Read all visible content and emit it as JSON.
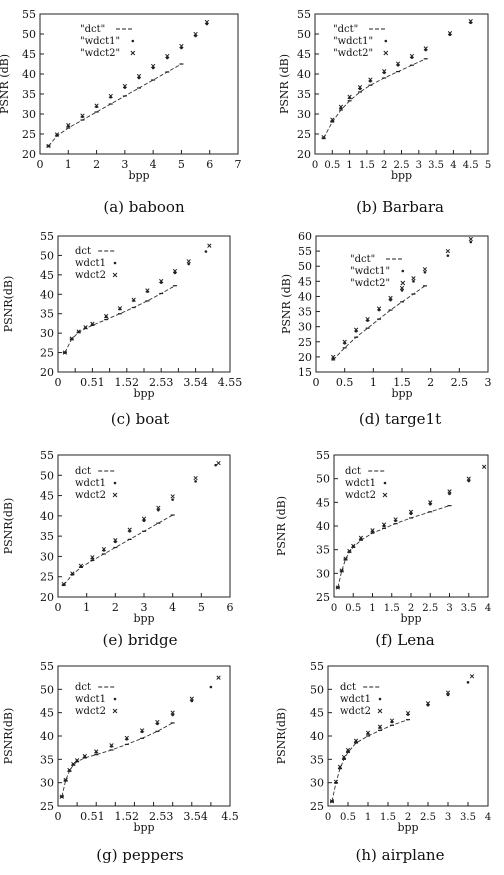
{
  "chart_data": [
    {
      "type": "scatter",
      "caption": "(a)  baboon",
      "xlabel": "bpp",
      "ylabel": "PSNR (dB)",
      "xlim": [
        0,
        7
      ],
      "ylim": [
        20,
        55
      ],
      "xticks": [
        "0",
        "1",
        "2",
        "3",
        "4",
        "5",
        "6",
        "7"
      ],
      "yticks": [
        "20",
        "25",
        "30",
        "35",
        "40",
        "45",
        "50",
        "55"
      ],
      "legend": [
        "\"dct\"",
        "\"wdct1\"",
        "\"wdct2\""
      ],
      "series": [
        {
          "name": "\"dct\"",
          "x": [
            0.3,
            0.6,
            1.0,
            1.5,
            2.0,
            2.5,
            3.0,
            3.5,
            4.0,
            4.5,
            5.0
          ],
          "y": [
            22,
            24.5,
            26.5,
            28.5,
            30.5,
            32.5,
            34.5,
            36.5,
            38.5,
            40.5,
            42.5
          ]
        },
        {
          "name": "\"wdct1\"",
          "x": [
            0.3,
            0.6,
            1.0,
            1.5,
            2.0,
            2.5,
            3.0,
            3.5,
            4.0,
            4.5,
            5.0,
            5.5,
            5.9
          ],
          "y": [
            22,
            24.8,
            27,
            29.3,
            31.8,
            34.2,
            36.6,
            39,
            41.5,
            44,
            46.5,
            49.5,
            52.5
          ]
        },
        {
          "name": "\"wdct2\"",
          "x": [
            0.3,
            0.6,
            1.0,
            1.5,
            2.0,
            2.5,
            3.0,
            3.5,
            4.0,
            4.5,
            5.0,
            5.5,
            5.9
          ],
          "y": [
            22,
            24.9,
            27.2,
            29.6,
            32.1,
            34.5,
            37,
            39.5,
            42,
            44.5,
            47,
            50,
            53
          ]
        }
      ]
    },
    {
      "type": "scatter",
      "caption": "(b)  Barbara",
      "xlabel": "bpp",
      "ylabel": "PSNR (dB)",
      "xlim": [
        0,
        5
      ],
      "ylim": [
        20,
        55
      ],
      "xticks": [
        "0",
        "0.5",
        "1",
        "1.5",
        "2",
        "2.5",
        "3",
        "3.5",
        "4",
        "4.5",
        "5"
      ],
      "yticks": [
        "20",
        "25",
        "30",
        "35",
        "40",
        "45",
        "50",
        "55"
      ],
      "legend": [
        "\"dct\"",
        "\"wdct1\"",
        "\"wdct2\""
      ],
      "series": [
        {
          "name": "\"dct\"",
          "x": [
            0.25,
            0.5,
            0.75,
            1.0,
            1.3,
            1.6,
            2.0,
            2.4,
            2.8,
            3.2
          ],
          "y": [
            24,
            28,
            31,
            33.3,
            35.5,
            37.2,
            39,
            40.6,
            42.2,
            43.8
          ]
        },
        {
          "name": "\"wdct1\"",
          "x": [
            0.25,
            0.5,
            0.75,
            1.0,
            1.3,
            1.6,
            2.0,
            2.4,
            2.8,
            3.2,
            3.9,
            4.5
          ],
          "y": [
            24,
            28.3,
            31.5,
            34,
            36.3,
            38.2,
            40.3,
            42.2,
            44.1,
            46,
            49.8,
            52.8
          ]
        },
        {
          "name": "\"wdct2\"",
          "x": [
            0.25,
            0.5,
            0.75,
            1.0,
            1.3,
            1.6,
            2.0,
            2.4,
            2.8,
            3.2,
            3.9,
            4.5
          ],
          "y": [
            24.2,
            28.6,
            31.8,
            34.3,
            36.7,
            38.6,
            40.7,
            42.6,
            44.5,
            46.4,
            50.2,
            53.2
          ]
        }
      ]
    },
    {
      "type": "scatter",
      "caption": "(c)  boat",
      "xlabel": "bpp",
      "ylabel": "PSNR(dB)",
      "xlim": [
        0,
        5
      ],
      "ylim": [
        20,
        55
      ],
      "xticks": [
        "0",
        "0.5",
        "1",
        "1.5",
        "2",
        "2.5",
        "3",
        "3.5",
        "4",
        "4.5",
        "5"
      ],
      "xtick_labels": [
        "0",
        "0.51",
        "1.52",
        "2.53",
        "3.54",
        "4.55"
      ],
      "yticks": [
        "20",
        "25",
        "30",
        "35",
        "40",
        "45",
        "50",
        "55"
      ],
      "legend": [
        "dct",
        "wdct1",
        "wdct2"
      ],
      "series": [
        {
          "name": "dct",
          "x": [
            0.2,
            0.4,
            0.6,
            0.8,
            1.0,
            1.4,
            1.8,
            2.2,
            2.6,
            3.0,
            3.4
          ],
          "y": [
            25,
            28.5,
            30.2,
            31.2,
            32,
            33.5,
            35,
            36.6,
            38.3,
            40.2,
            42.2
          ]
        },
        {
          "name": "wdct1",
          "x": [
            0.2,
            0.4,
            0.6,
            0.8,
            1.0,
            1.4,
            1.8,
            2.2,
            2.6,
            3.0,
            3.4,
            3.8,
            4.3
          ],
          "y": [
            25,
            28.5,
            30.3,
            31.4,
            32.3,
            34.2,
            36.2,
            38.4,
            40.7,
            43,
            45.5,
            47.8,
            51
          ]
        },
        {
          "name": "wdct2",
          "x": [
            0.2,
            0.4,
            0.6,
            0.8,
            1.0,
            1.4,
            1.8,
            2.2,
            2.6,
            3.0,
            3.4,
            3.8,
            4.4
          ],
          "y": [
            25,
            28.6,
            30.4,
            31.5,
            32.4,
            34.4,
            36.4,
            38.6,
            41,
            43.4,
            46,
            48.5,
            52.5
          ]
        }
      ]
    },
    {
      "type": "scatter",
      "caption": "(d)  targe1t",
      "xlabel": "bpp",
      "ylabel": "PSNR (dB)",
      "xlim": [
        0,
        3
      ],
      "ylim": [
        15,
        60
      ],
      "xticks": [
        "0",
        "0.5",
        "1",
        "1.5",
        "2",
        "2.5",
        "3"
      ],
      "yticks": [
        "15",
        "20",
        "25",
        "30",
        "35",
        "40",
        "45",
        "50",
        "55",
        "60"
      ],
      "legend": [
        "\"dct\"",
        "\"wdct1\"",
        "\"wdct2\""
      ],
      "series": [
        {
          "name": "\"dct\"",
          "x": [
            0.3,
            0.5,
            0.7,
            0.9,
            1.1,
            1.3,
            1.5,
            1.7,
            1.9
          ],
          "y": [
            19,
            23,
            26.5,
            29.5,
            32.5,
            35.5,
            38.2,
            40.8,
            43.5
          ]
        },
        {
          "name": "\"wdct1\"",
          "x": [
            0.3,
            0.5,
            0.7,
            0.9,
            1.1,
            1.3,
            1.5,
            1.7,
            1.9,
            2.3,
            2.7
          ],
          "y": [
            19.5,
            24.5,
            28.5,
            32,
            35.5,
            38.8,
            42,
            45,
            48,
            53.5,
            58
          ]
        },
        {
          "name": "\"wdct2\"",
          "x": [
            0.3,
            0.5,
            0.7,
            0.9,
            1.1,
            1.3,
            1.5,
            1.7,
            1.9,
            2.3,
            2.7
          ],
          "y": [
            20,
            25,
            29,
            32.5,
            36,
            39.5,
            42.8,
            46,
            49,
            55,
            59
          ]
        }
      ]
    },
    {
      "type": "scatter",
      "caption": "(e)  bridge",
      "xlabel": "bpp",
      "ylabel": "PSNR(dB)",
      "xlim": [
        0,
        6
      ],
      "ylim": [
        20,
        55
      ],
      "xticks": [
        "0",
        "1",
        "2",
        "3",
        "4",
        "5",
        "6"
      ],
      "yticks": [
        "20",
        "25",
        "30",
        "35",
        "40",
        "45",
        "50",
        "55"
      ],
      "legend": [
        "dct",
        "wdct1",
        "wdct2"
      ],
      "series": [
        {
          "name": "dct",
          "x": [
            0.2,
            0.5,
            0.8,
            1.2,
            1.6,
            2.0,
            2.5,
            3.0,
            3.5,
            4.0
          ],
          "y": [
            23,
            25.5,
            27.3,
            29,
            30.6,
            32.2,
            34.2,
            36.2,
            38.2,
            40.2
          ]
        },
        {
          "name": "wdct1",
          "x": [
            0.2,
            0.5,
            0.8,
            1.2,
            1.6,
            2.0,
            2.5,
            3.0,
            3.5,
            4.0,
            4.8,
            5.5
          ],
          "y": [
            23,
            25.6,
            27.5,
            29.5,
            31.5,
            33.6,
            36.2,
            38.8,
            41.4,
            44,
            48.5,
            52.5
          ]
        },
        {
          "name": "wdct2",
          "x": [
            0.2,
            0.5,
            0.8,
            1.2,
            1.6,
            2.0,
            2.5,
            3.0,
            3.5,
            4.0,
            4.8,
            5.6
          ],
          "y": [
            23.2,
            25.8,
            27.7,
            29.8,
            31.8,
            34,
            36.6,
            39.3,
            42,
            44.8,
            49.3,
            53
          ]
        }
      ]
    },
    {
      "type": "scatter",
      "caption": "(f)  Lena",
      "xlabel": "bpp",
      "ylabel": "PSNR (dB)",
      "xlim": [
        0,
        4
      ],
      "ylim": [
        25,
        55
      ],
      "xticks": [
        "0",
        "0.5",
        "1",
        "1.5",
        "2",
        "2.5",
        "3",
        "3.5",
        "4"
      ],
      "yticks": [
        "25",
        "30",
        "35",
        "40",
        "45",
        "50",
        "55"
      ],
      "legend": [
        "dct",
        "wdct1",
        "wdct2"
      ],
      "series": [
        {
          "name": "dct",
          "x": [
            0.1,
            0.2,
            0.3,
            0.4,
            0.5,
            0.7,
            1.0,
            1.3,
            1.6,
            2.0,
            2.5,
            3.0
          ],
          "y": [
            27,
            30.5,
            33,
            34.5,
            35.5,
            37,
            38.5,
            39.5,
            40.5,
            41.7,
            43,
            44.3
          ]
        },
        {
          "name": "wdct1",
          "x": [
            0.1,
            0.2,
            0.3,
            0.4,
            0.5,
            0.7,
            1.0,
            1.3,
            1.6,
            2.0,
            2.5,
            3.0,
            3.5
          ],
          "y": [
            27,
            30.5,
            33,
            34.6,
            35.7,
            37.3,
            38.9,
            40,
            41.1,
            42.6,
            44.6,
            46.8,
            49.5
          ]
        },
        {
          "name": "wdct2",
          "x": [
            0.1,
            0.2,
            0.3,
            0.4,
            0.5,
            0.7,
            1.0,
            1.3,
            1.6,
            2.0,
            2.5,
            3.0,
            3.5,
            3.9
          ],
          "y": [
            27,
            30.6,
            33.1,
            34.7,
            35.8,
            37.5,
            39.1,
            40.3,
            41.4,
            43,
            45,
            47.3,
            50,
            52.5
          ]
        }
      ]
    },
    {
      "type": "scatter",
      "caption": "(g)  peppers",
      "xlabel": "bpp",
      "ylabel": "PSNR(dB)",
      "xlim": [
        0,
        4.5
      ],
      "ylim": [
        25,
        55
      ],
      "xticks": [
        "0",
        "0.5",
        "1",
        "1.5",
        "2",
        "2.5",
        "3",
        "3.5",
        "4",
        "4.5"
      ],
      "xtick_labels": [
        "0",
        "0.51",
        "1.52",
        "2.53",
        "3.54",
        "4.5"
      ],
      "yticks": [
        "25",
        "30",
        "35",
        "40",
        "45",
        "50",
        "55"
      ],
      "legend": [
        "dct",
        "wdct1",
        "wdct2"
      ],
      "series": [
        {
          "name": "dct",
          "x": [
            0.1,
            0.2,
            0.3,
            0.4,
            0.5,
            0.7,
            1.0,
            1.4,
            1.8,
            2.2,
            2.6,
            3.0
          ],
          "y": [
            27,
            30.5,
            32.5,
            33.8,
            34.5,
            35.3,
            36,
            37,
            38.2,
            39.5,
            41,
            42.8
          ]
        },
        {
          "name": "wdct1",
          "x": [
            0.1,
            0.2,
            0.3,
            0.4,
            0.5,
            0.7,
            1.0,
            1.4,
            1.8,
            2.2,
            2.6,
            3.0,
            3.5,
            4.0
          ],
          "y": [
            27,
            30.5,
            32.6,
            33.9,
            34.7,
            35.6,
            36.5,
            37.8,
            39.3,
            40.9,
            42.6,
            44.5,
            47.5,
            50.5
          ]
        },
        {
          "name": "wdct2",
          "x": [
            0.1,
            0.2,
            0.3,
            0.4,
            0.5,
            0.7,
            1.0,
            1.4,
            1.8,
            2.2,
            2.6,
            3.0,
            3.5,
            4.2
          ],
          "y": [
            27,
            30.6,
            32.7,
            34,
            34.8,
            35.7,
            36.7,
            38,
            39.6,
            41.2,
            43,
            45,
            48,
            52.5
          ]
        }
      ]
    },
    {
      "type": "scatter",
      "caption": "(h)  airplane",
      "xlabel": "bpp",
      "ylabel": "PSNR(dB)",
      "xlim": [
        0,
        4
      ],
      "ylim": [
        25,
        55
      ],
      "xticks": [
        "0",
        "0.5",
        "1",
        "1.5",
        "2",
        "2.5",
        "3",
        "3.5",
        "4"
      ],
      "yticks": [
        "25",
        "30",
        "35",
        "40",
        "45",
        "50",
        "55"
      ],
      "legend": [
        "dct",
        "wdct1",
        "wdct2"
      ],
      "series": [
        {
          "name": "dct",
          "x": [
            0.1,
            0.2,
            0.3,
            0.4,
            0.5,
            0.7,
            1.0,
            1.3,
            1.6,
            2.0
          ],
          "y": [
            26,
            30,
            33,
            35,
            36.5,
            38.5,
            40,
            41.2,
            42.3,
            43.5
          ]
        },
        {
          "name": "wdct1",
          "x": [
            0.1,
            0.2,
            0.3,
            0.4,
            0.5,
            0.7,
            1.0,
            1.3,
            1.6,
            2.0,
            2.5,
            3.0,
            3.5
          ],
          "y": [
            26,
            30,
            33.2,
            35.3,
            36.8,
            38.8,
            40.5,
            41.8,
            43,
            44.6,
            46.6,
            48.8,
            51.5
          ]
        },
        {
          "name": "wdct2",
          "x": [
            0.1,
            0.2,
            0.3,
            0.4,
            0.5,
            0.7,
            1.0,
            1.3,
            1.6,
            2.0,
            2.5,
            3.0,
            3.6
          ],
          "y": [
            26,
            30.2,
            33.4,
            35.5,
            37,
            39,
            40.7,
            42,
            43.3,
            44.9,
            47,
            49.3,
            52.8
          ]
        }
      ]
    }
  ]
}
